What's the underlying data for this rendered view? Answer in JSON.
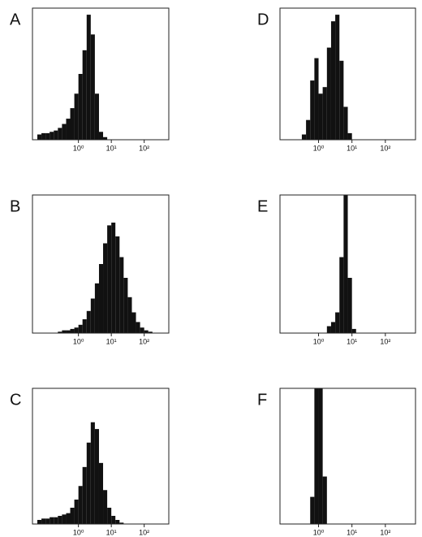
{
  "chart_data": [
    {
      "type": "histogram",
      "title": "A",
      "log_x": true,
      "color": "#111",
      "xlim": [
        0.04,
        560
      ],
      "ylim": [
        0,
        100
      ],
      "xticks": [
        {
          "value": 1,
          "label": "10⁰"
        },
        {
          "value": 10,
          "label": "10¹"
        },
        {
          "value": 100,
          "label": "10²"
        }
      ],
      "bins": [
        0.0562,
        0.075,
        0.1,
        0.133,
        0.178,
        0.237,
        0.316,
        0.422,
        0.562,
        0.75,
        1,
        1.33,
        1.78,
        2.37,
        3.16,
        4.22,
        5.62,
        7.5,
        10,
        13.3,
        17.8,
        23.7,
        31.6,
        42.2,
        56.2,
        75,
        100,
        133,
        178,
        237
      ],
      "values": [
        4,
        5,
        5,
        6,
        7,
        9,
        12,
        16,
        24,
        35,
        50,
        68,
        95,
        80,
        35,
        6,
        2,
        0,
        0,
        0,
        0,
        0,
        0,
        0,
        0,
        0,
        0,
        0,
        0
      ]
    },
    {
      "type": "histogram",
      "title": "B",
      "log_x": true,
      "color": "#111",
      "xlim": [
        0.04,
        560
      ],
      "ylim": [
        0,
        100
      ],
      "xticks": [
        {
          "value": 1,
          "label": "10⁰"
        },
        {
          "value": 10,
          "label": "10¹"
        },
        {
          "value": 100,
          "label": "10²"
        }
      ],
      "bins": [
        0.0562,
        0.075,
        0.1,
        0.133,
        0.178,
        0.237,
        0.316,
        0.422,
        0.562,
        0.75,
        1,
        1.33,
        1.78,
        2.37,
        3.16,
        4.22,
        5.62,
        7.5,
        10,
        13.3,
        17.8,
        23.7,
        31.6,
        42.2,
        56.2,
        75,
        100,
        133,
        178,
        237
      ],
      "values": [
        0,
        0,
        0,
        0,
        0,
        1,
        2,
        2,
        3,
        4,
        6,
        10,
        16,
        25,
        36,
        50,
        65,
        78,
        80,
        70,
        55,
        40,
        26,
        15,
        8,
        4,
        2,
        1,
        0
      ]
    },
    {
      "type": "histogram",
      "title": "C",
      "log_x": true,
      "color": "#111",
      "xlim": [
        0.04,
        560
      ],
      "ylim": [
        0,
        100
      ],
      "xticks": [
        {
          "value": 1,
          "label": "10⁰"
        },
        {
          "value": 10,
          "label": "10¹"
        },
        {
          "value": 100,
          "label": "10²"
        }
      ],
      "bins": [
        0.0562,
        0.075,
        0.1,
        0.133,
        0.178,
        0.237,
        0.316,
        0.422,
        0.562,
        0.75,
        1,
        1.33,
        1.78,
        2.37,
        3.16,
        4.22,
        5.62,
        7.5,
        10,
        13.3,
        17.8,
        23.7,
        31.6,
        42.2,
        56.2,
        75,
        100,
        133,
        178,
        237
      ],
      "values": [
        3,
        4,
        4,
        5,
        5,
        6,
        7,
        8,
        12,
        18,
        28,
        42,
        60,
        75,
        70,
        45,
        25,
        12,
        6,
        3,
        1,
        0,
        0,
        0,
        0,
        0,
        0,
        0,
        0
      ]
    },
    {
      "type": "histogram",
      "title": "D",
      "log_x": true,
      "color": "#111",
      "xlim": [
        0.07,
        800
      ],
      "ylim": [
        0,
        100
      ],
      "xticks": [
        {
          "value": 1,
          "label": "10⁰"
        },
        {
          "value": 10,
          "label": "10¹"
        },
        {
          "value": 100,
          "label": "10²"
        }
      ],
      "bins": [
        0.0562,
        0.075,
        0.1,
        0.133,
        0.178,
        0.237,
        0.316,
        0.422,
        0.562,
        0.75,
        1,
        1.33,
        1.78,
        2.37,
        3.16,
        4.22,
        5.62,
        7.5,
        10,
        13.3,
        17.8,
        23.7,
        31.6,
        42.2,
        56.2,
        75,
        100,
        133,
        178,
        237
      ],
      "values": [
        0,
        0,
        0,
        0,
        0,
        0,
        4,
        15,
        45,
        62,
        35,
        40,
        70,
        90,
        95,
        60,
        25,
        5,
        0,
        0,
        0,
        0,
        0,
        0,
        0,
        0,
        0,
        0,
        0
      ]
    },
    {
      "type": "histogram",
      "title": "E",
      "log_x": true,
      "color": "#111",
      "xlim": [
        0.07,
        800
      ],
      "ylim": [
        0,
        100
      ],
      "xticks": [
        {
          "value": 1,
          "label": "10⁰"
        },
        {
          "value": 10,
          "label": "10¹"
        },
        {
          "value": 100,
          "label": "10²"
        }
      ],
      "bins": [
        0.0562,
        0.075,
        0.1,
        0.133,
        0.178,
        0.237,
        0.316,
        0.422,
        0.562,
        0.75,
        1,
        1.33,
        1.78,
        2.37,
        3.16,
        4.22,
        5.62,
        7.5,
        10,
        13.3,
        17.8,
        23.7,
        31.6,
        42.2,
        56.2,
        75,
        100,
        133,
        178,
        237
      ],
      "values": [
        0,
        0,
        0,
        0,
        0,
        0,
        0,
        0,
        0,
        0,
        0,
        0,
        5,
        8,
        15,
        55,
        100,
        40,
        3,
        0,
        0,
        0,
        0,
        0,
        0,
        0,
        0,
        0,
        0
      ]
    },
    {
      "type": "histogram",
      "title": "F",
      "log_x": true,
      "color": "#111",
      "xlim": [
        0.07,
        800
      ],
      "ylim": [
        0,
        100
      ],
      "xticks": [
        {
          "value": 1,
          "label": "10⁰"
        },
        {
          "value": 10,
          "label": "10¹"
        },
        {
          "value": 100,
          "label": "10²"
        }
      ],
      "bins": [
        0.0562,
        0.075,
        0.1,
        0.133,
        0.178,
        0.237,
        0.316,
        0.422,
        0.562,
        0.75,
        1,
        1.33,
        1.78,
        2.37,
        3.16,
        4.22,
        5.62,
        7.5,
        10,
        13.3,
        17.8,
        23.7,
        31.6,
        42.2,
        56.2,
        75,
        100,
        133,
        178,
        237
      ],
      "values": [
        0,
        0,
        0,
        0,
        0,
        0,
        0,
        0,
        20,
        100,
        100,
        35,
        0,
        0,
        0,
        0,
        0,
        0,
        0,
        0,
        0,
        0,
        0,
        0,
        0,
        0,
        0,
        0,
        0
      ]
    }
  ]
}
